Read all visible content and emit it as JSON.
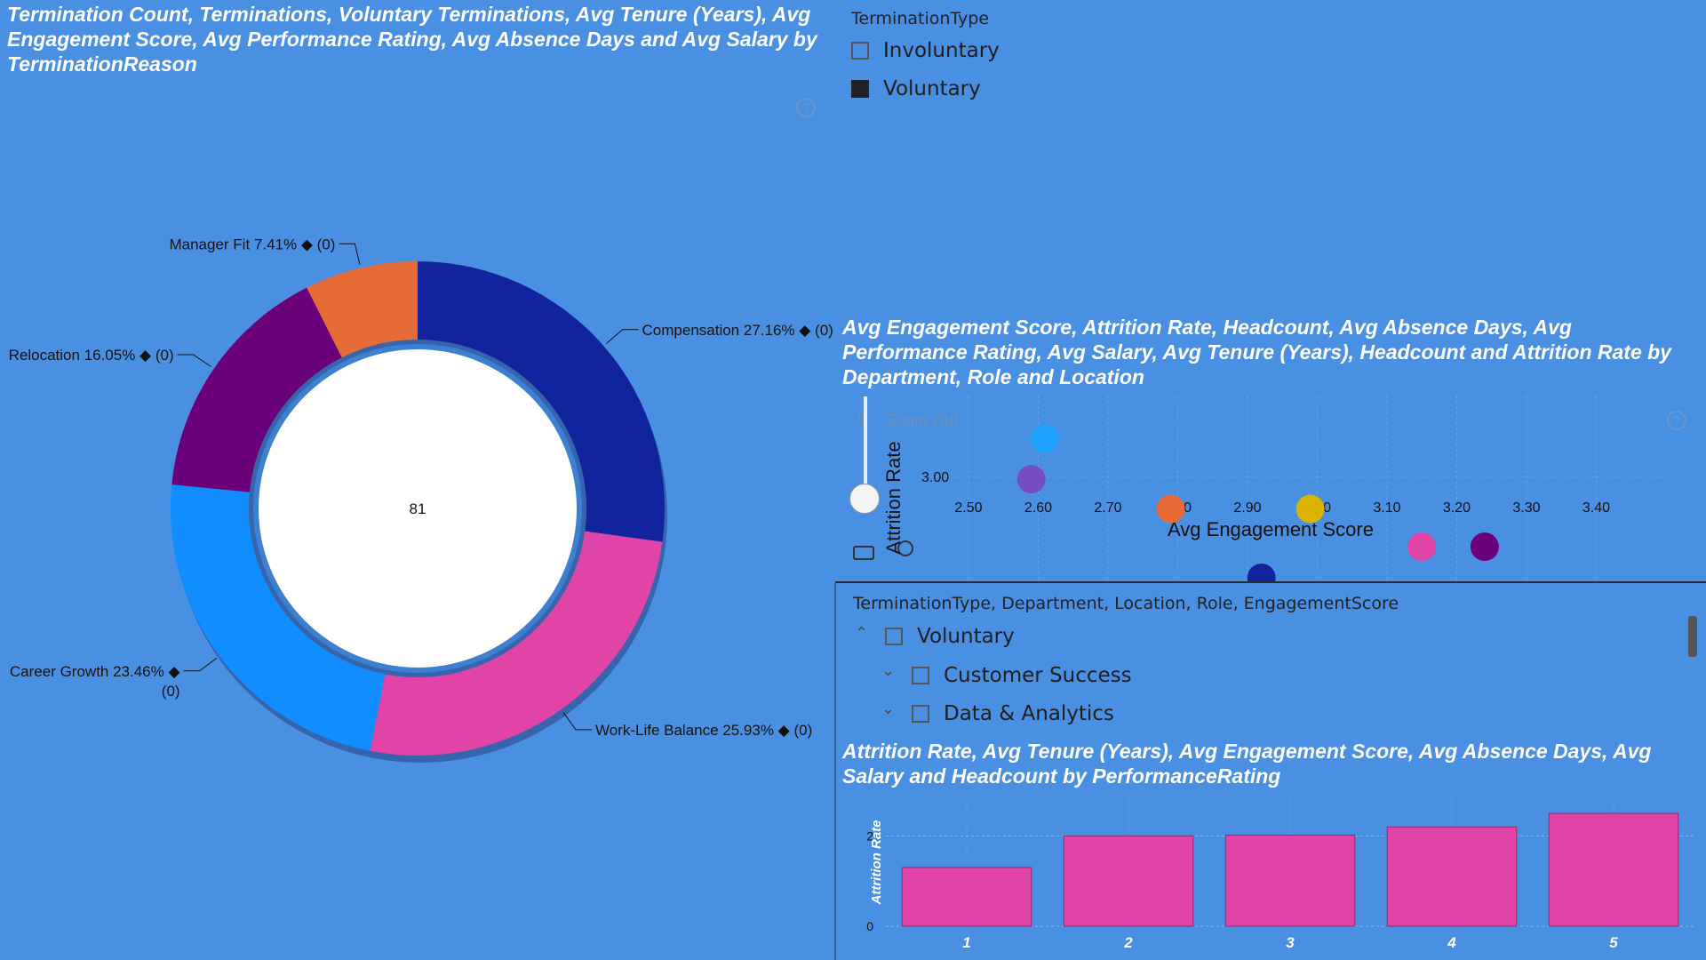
{
  "donut_visual": {
    "title": "Termination Count, Terminations, Voluntary Terminations, Avg Tenure (Years), Avg Engagement Score, Avg Performance Rating, Avg Absence Days and Avg Salary by TerminationReason",
    "center_value": "81"
  },
  "termination_slicer": {
    "header": "TerminationType",
    "options": [
      {
        "label": "Involuntary",
        "checked": false
      },
      {
        "label": "Voluntary",
        "checked": true
      }
    ]
  },
  "scatter_visual": {
    "title": "Avg Engagement Score, Attrition Rate, Headcount, Avg Absence Days, Avg Performance Rating, Avg Salary, Avg Tenure (Years), Headcount and Attrition Rate by Department, Role and Location",
    "zoom_out_label": "Zoom Out"
  },
  "hierarchy_slicer": {
    "header": "TerminationType, Department, Location, Role, EngagementScore",
    "items": [
      {
        "label": "Voluntary",
        "level": 0,
        "expanded": true
      },
      {
        "label": "Customer Success",
        "level": 1,
        "expanded": false
      },
      {
        "label": "Data & Analytics",
        "level": 1,
        "expanded": false
      }
    ]
  },
  "bar_visual": {
    "title": "Attrition Rate, Avg Tenure (Years), Avg Engagement Score, Avg Absence Days, Avg Salary and Headcount by PerformanceRating"
  },
  "icons": [
    "help-icon",
    "zoom-out-icon",
    "focus-icon",
    "lasso-icon",
    "checkbox-icon",
    "chevron-up-icon",
    "chevron-down-icon"
  ],
  "chart_data": [
    {
      "type": "pie",
      "variant": "donut",
      "categories": [
        "Compensation",
        "Work-Life Balance",
        "Career Growth",
        "Relocation",
        "Manager Fit"
      ],
      "values": [
        27.16,
        25.93,
        23.46,
        16.05,
        7.41
      ],
      "value_unit": "%",
      "labels": [
        "Compensation 27.16% ◆ (0)",
        "Work-Life Balance 25.93% ◆ (0)",
        "Career Growth 23.46% ◆",
        "Relocation 16.05% ◆ (0)",
        "Manager Fit 7.41% ◆ (0)"
      ],
      "label_suffix": "(0)",
      "colors": [
        "#12239E",
        "#E044A7",
        "#118DFF",
        "#6B007B",
        "#E66C37"
      ]
    },
    {
      "type": "scatter",
      "xlabel": "Avg Engagement Score",
      "ylabel": "Attrition Rate",
      "x_ticks": [
        "2.50",
        "2.60",
        "2.70",
        "2.80",
        "2.90",
        "3.00",
        "3.10",
        "3.20",
        "3.30",
        "3.40"
      ],
      "y_ticks": [
        "3.00"
      ],
      "xlim": [
        2.43,
        3.5
      ],
      "ylim": [
        2.25,
        3.6
      ],
      "grid": true,
      "points": [
        {
          "x": 2.61,
          "y": 3.28,
          "color": "#1EA0FF"
        },
        {
          "x": 2.59,
          "y": 2.98,
          "color": "#744EC2"
        },
        {
          "x": 2.79,
          "y": 2.76,
          "color": "#E66C37"
        },
        {
          "x": 2.99,
          "y": 2.76,
          "color": "#D9B300"
        },
        {
          "x": 3.15,
          "y": 2.48,
          "color": "#E044A7"
        },
        {
          "x": 3.24,
          "y": 2.48,
          "color": "#6B007B"
        },
        {
          "x": 2.92,
          "y": 2.25,
          "color": "#12239E"
        }
      ]
    },
    {
      "type": "bar",
      "categories": [
        "1",
        "2",
        "3",
        "4",
        "5"
      ],
      "values": [
        1.3,
        2.0,
        2.02,
        2.2,
        2.5
      ],
      "ylabel": "Attrition Rate",
      "y_ticks": [
        "0",
        "2"
      ],
      "ylim": [
        0,
        2.6
      ],
      "grid": true,
      "color": "#E044A7"
    }
  ]
}
